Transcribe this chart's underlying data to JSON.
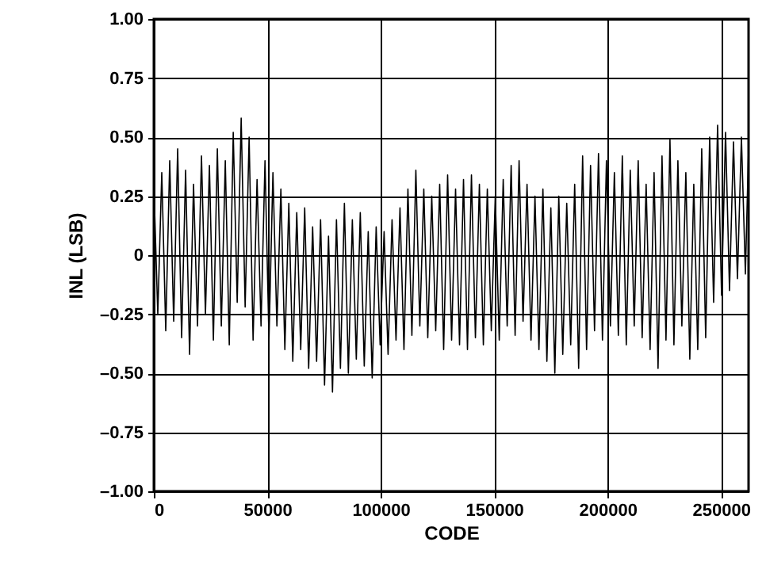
{
  "chart_data": {
    "type": "line",
    "xlabel": "CODE",
    "ylabel": "INL (LSB)",
    "xlim": [
      0,
      262144
    ],
    "xticks": [
      0,
      50000,
      100000,
      150000,
      200000,
      250000
    ],
    "ylim": [
      -1,
      1
    ],
    "yticks": [
      {
        "value": -1,
        "label": "–1.00"
      },
      {
        "value": -0.75,
        "label": "–0.75"
      },
      {
        "value": -0.5,
        "label": "–0.50"
      },
      {
        "value": -0.25,
        "label": "–0.25"
      },
      0,
      {
        "value": 0.25,
        "label": "0.25"
      },
      {
        "value": 0.5,
        "label": "0.50"
      },
      {
        "value": 0.75,
        "label": "0.75"
      },
      {
        "value": 1,
        "label": "1.00"
      }
    ],
    "grid": true,
    "marker": "none",
    "line_style": "solid",
    "series": [
      {
        "color": "#000000",
        "x": [
          0,
          1750,
          3500,
          5250,
          7000,
          8750,
          10500,
          12250,
          14000,
          15750,
          17500,
          19250,
          21000,
          22750,
          24500,
          26250,
          28000,
          29750,
          31500,
          33250,
          35000,
          36750,
          38500,
          40250,
          42000,
          43750,
          45500,
          47250,
          49000,
          50750,
          52500,
          54250,
          56000,
          57750,
          59500,
          61250,
          63000,
          64750,
          66500,
          68250,
          70000,
          71750,
          73500,
          75250,
          77000,
          78750,
          80500,
          82250,
          84000,
          85750,
          87500,
          89250,
          91000,
          92750,
          94500,
          96250,
          98000,
          99750,
          101500,
          103250,
          105000,
          106750,
          108500,
          110250,
          112000,
          113750,
          115500,
          117250,
          119000,
          120750,
          122500,
          124250,
          126000,
          127750,
          129500,
          131250,
          133000,
          134750,
          136500,
          138250,
          140000,
          141750,
          143500,
          145250,
          147000,
          148750,
          150500,
          152250,
          154000,
          155750,
          157500,
          159250,
          161000,
          162750,
          164500,
          166250,
          168000,
          169750,
          171500,
          173250,
          175000,
          176750,
          178500,
          180250,
          182000,
          183750,
          185500,
          187250,
          189000,
          190750,
          192500,
          194250,
          196000,
          197750,
          199500,
          201250,
          203000,
          204750,
          206500,
          208250,
          210000,
          211750,
          213500,
          215250,
          217000,
          218750,
          220500,
          222250,
          224000,
          225750,
          227500,
          229250,
          231000,
          232750,
          234500,
          236250,
          238000,
          239750,
          241500,
          243250,
          245000,
          246750,
          248500,
          250250,
          252000,
          253750,
          255500,
          257250,
          259000,
          260750,
          262144
        ],
        "values": [
          0.3,
          -0.25,
          0.35,
          -0.32,
          0.4,
          -0.28,
          0.45,
          -0.35,
          0.36,
          -0.42,
          0.3,
          -0.3,
          0.42,
          -0.25,
          0.38,
          -0.36,
          0.45,
          -0.3,
          0.4,
          -0.38,
          0.52,
          -0.2,
          0.58,
          -0.22,
          0.5,
          -0.36,
          0.32,
          -0.3,
          0.4,
          -0.36,
          0.35,
          -0.3,
          0.28,
          -0.4,
          0.22,
          -0.45,
          0.18,
          -0.4,
          0.2,
          -0.48,
          0.12,
          -0.45,
          0.15,
          -0.55,
          0.08,
          -0.58,
          0.15,
          -0.48,
          0.22,
          -0.5,
          0.15,
          -0.44,
          0.18,
          -0.47,
          0.1,
          -0.52,
          0.12,
          -0.38,
          0.1,
          -0.42,
          0.15,
          -0.36,
          0.2,
          -0.4,
          0.28,
          -0.34,
          0.36,
          -0.3,
          0.28,
          -0.35,
          0.25,
          -0.32,
          0.3,
          -0.4,
          0.34,
          -0.36,
          0.28,
          -0.38,
          0.32,
          -0.4,
          0.34,
          -0.35,
          0.3,
          -0.38,
          0.28,
          -0.32,
          0.25,
          -0.36,
          0.32,
          -0.3,
          0.38,
          -0.34,
          0.4,
          -0.28,
          0.3,
          -0.36,
          0.25,
          -0.4,
          0.28,
          -0.45,
          0.2,
          -0.5,
          0.25,
          -0.42,
          0.22,
          -0.38,
          0.3,
          -0.48,
          0.42,
          -0.4,
          0.38,
          -0.32,
          0.43,
          -0.36,
          0.4,
          -0.3,
          0.35,
          -0.34,
          0.42,
          -0.38,
          0.36,
          -0.3,
          0.4,
          -0.35,
          0.3,
          -0.4,
          0.35,
          -0.48,
          0.42,
          -0.36,
          0.49,
          -0.38,
          0.4,
          -0.3,
          0.35,
          -0.44,
          0.3,
          -0.4,
          0.45,
          -0.35,
          0.5,
          -0.2,
          0.55,
          -0.17,
          0.52,
          -0.15,
          0.48,
          -0.1,
          0.5,
          -0.08,
          0.45
        ]
      }
    ]
  }
}
